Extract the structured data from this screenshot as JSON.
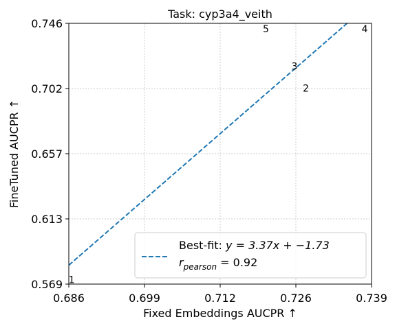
{
  "chart_data": {
    "type": "scatter",
    "title": "Task: cyp3a4_veith",
    "xlabel": "Fixed Embeddings AUCPR ↑",
    "ylabel": "FineTuned AUCPR ↑",
    "xlim": [
      0.686,
      0.739
    ],
    "ylim": [
      0.569,
      0.746
    ],
    "xticks": [
      "0.686",
      "0.699",
      "0.712",
      "0.726",
      "0.739"
    ],
    "yticks": [
      "0.569",
      "0.613",
      "0.657",
      "0.702",
      "0.746"
    ],
    "grid": true,
    "points": [
      {
        "label": "1",
        "x": 0.6865,
        "y": 0.5715
      },
      {
        "label": "2",
        "x": 0.7275,
        "y": 0.7015
      },
      {
        "label": "3",
        "x": 0.7255,
        "y": 0.7165
      },
      {
        "label": "4",
        "x": 0.7378,
        "y": 0.7418
      },
      {
        "label": "5",
        "x": 0.7205,
        "y": 0.7418
      }
    ],
    "fit": {
      "slope": 3.37,
      "intercept": -1.73,
      "color": "#1f77b4",
      "style": "dashed"
    },
    "legend": {
      "placement": "lower-right",
      "fit_prefix": "Best-fit: ",
      "fit_equation": "y = 3.37x + −1.73",
      "r_label": "r",
      "r_subscript": "pearson",
      "r_value": " = 0.92"
    }
  }
}
